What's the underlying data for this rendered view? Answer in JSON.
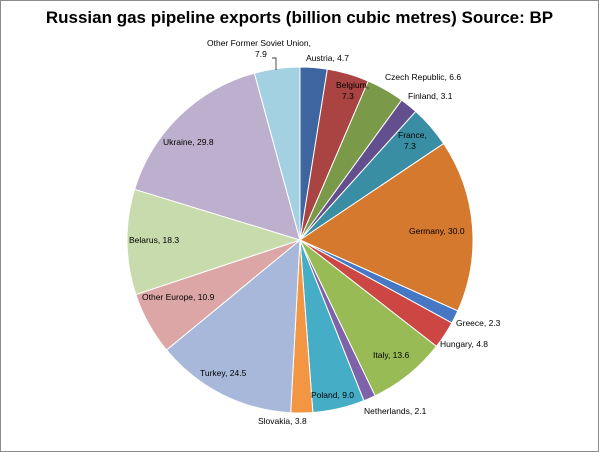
{
  "chart_data": {
    "type": "pie",
    "title": "Russian gas pipeline exports (billion cubic metres) Source: BP",
    "slices": [
      {
        "label": "Austria",
        "value": 4.7,
        "display": "Austria, 4.7",
        "color": "#3e65a0"
      },
      {
        "label": "Belgium",
        "value": 7.3,
        "display": "Belgium, 7.3",
        "color": "#a94442"
      },
      {
        "label": "Czech Republic",
        "value": 6.6,
        "display": "Czech Republic, 6.6",
        "color": "#7a9a49"
      },
      {
        "label": "Finland",
        "value": 3.1,
        "display": "Finland, 3.1",
        "color": "#634f8d"
      },
      {
        "label": "France",
        "value": 7.3,
        "display": "France, 7.3",
        "color": "#3a8ea3"
      },
      {
        "label": "Germany",
        "value": 30.0,
        "display": "Germany, 30.0",
        "color": "#d5792f"
      },
      {
        "label": "Greece",
        "value": 2.3,
        "display": "Greece, 2.3",
        "color": "#4577c4"
      },
      {
        "label": "Hungary",
        "value": 4.8,
        "display": "Hungary, 4.8",
        "color": "#cc4744"
      },
      {
        "label": "Italy",
        "value": 13.6,
        "display": "Italy, 13.6",
        "color": "#98bb55"
      },
      {
        "label": "Netherlands",
        "value": 2.1,
        "display": "Netherlands, 2.1",
        "color": "#7e63a8"
      },
      {
        "label": "Poland",
        "value": 9.0,
        "display": "Poland, 9.0",
        "color": "#45aec6"
      },
      {
        "label": "Slovakia",
        "value": 3.8,
        "display": "Slovakia, 3.8",
        "color": "#f39644"
      },
      {
        "label": "Turkey",
        "value": 24.5,
        "display": "Turkey, 24.5",
        "color": "#a7b8da"
      },
      {
        "label": "Other Europe",
        "value": 10.9,
        "display": "Other Europe, 10.9",
        "color": "#dba6a5"
      },
      {
        "label": "Belarus",
        "value": 18.3,
        "display": "Belarus, 18.3",
        "color": "#c8dbac"
      },
      {
        "label": "Ukraine",
        "value": 29.8,
        "display": "Ukraine, 29.8",
        "color": "#bdb0cf"
      },
      {
        "label": "Other Former Soviet Union",
        "value": 7.9,
        "display": "Other Former Soviet Union, 7.9",
        "color": "#a4d1e2"
      }
    ],
    "legend": "none",
    "start_angle": "12 o'clock",
    "direction": "clockwise"
  }
}
